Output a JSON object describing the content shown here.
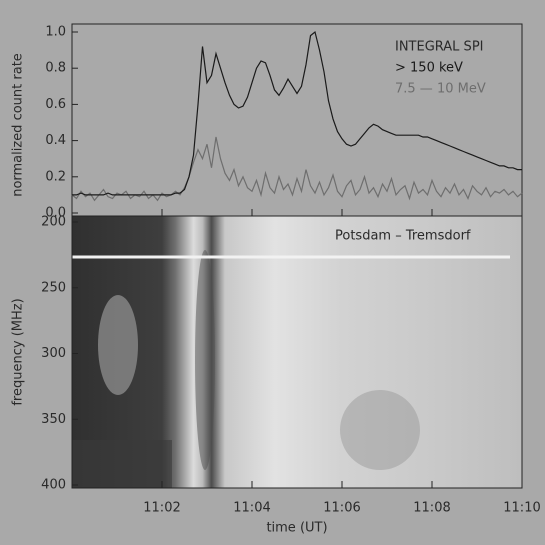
{
  "chart_data": [
    {
      "type": "line",
      "ylabel": "normalized count rate",
      "legend_title": "INTEGRAL SPI",
      "legend": "top-right",
      "xlim": [
        660,
        670
      ],
      "ylim": [
        0,
        1
      ],
      "yticks": [
        {
          "value": 0,
          "label": "0.0"
        },
        0.2,
        0.4,
        0.6,
        0.8,
        {
          "value": 1,
          "label": "1.0"
        }
      ],
      "x": [
        660,
        660.1,
        660.2,
        660.3,
        660.4,
        660.5,
        660.6,
        660.7,
        660.8,
        660.9,
        661,
        661.1,
        661.2,
        661.3,
        661.4,
        661.5,
        661.6,
        661.7,
        661.8,
        661.9,
        662,
        662.1,
        662.2,
        662.3,
        662.4,
        662.5,
        662.6,
        662.7,
        662.8,
        662.9,
        663,
        663.1,
        663.2,
        663.3,
        663.4,
        663.5,
        663.6,
        663.7,
        663.8,
        663.9,
        664,
        664.1,
        664.2,
        664.3,
        664.4,
        664.5,
        664.6,
        664.7,
        664.8,
        664.9,
        665,
        665.1,
        665.2,
        665.3,
        665.4,
        665.5,
        665.6,
        665.7,
        665.8,
        665.9,
        666,
        666.1,
        666.2,
        666.3,
        666.4,
        666.5,
        666.6,
        666.7,
        666.8,
        666.9,
        667,
        667.1,
        667.2,
        667.3,
        667.4,
        667.5,
        667.6,
        667.7,
        667.8,
        667.9,
        668,
        668.1,
        668.2,
        668.3,
        668.4,
        668.5,
        668.6,
        668.7,
        668.8,
        668.9,
        669,
        669.1,
        669.2,
        669.3,
        669.4,
        669.5,
        669.6,
        669.7,
        669.8,
        669.9,
        670
      ],
      "series": [
        {
          "name": "> 150 keV",
          "color": "#1a1a1a",
          "values": [
            0.1,
            0.1,
            0.11,
            0.1,
            0.1,
            0.1,
            0.1,
            0.1,
            0.11,
            0.1,
            0.1,
            0.1,
            0.1,
            0.1,
            0.1,
            0.1,
            0.1,
            0.1,
            0.1,
            0.1,
            0.1,
            0.1,
            0.1,
            0.11,
            0.11,
            0.13,
            0.2,
            0.32,
            0.6,
            0.92,
            0.72,
            0.76,
            0.88,
            0.8,
            0.72,
            0.65,
            0.6,
            0.58,
            0.59,
            0.64,
            0.72,
            0.8,
            0.84,
            0.83,
            0.76,
            0.68,
            0.65,
            0.69,
            0.74,
            0.7,
            0.66,
            0.7,
            0.82,
            0.98,
            1.0,
            0.9,
            0.78,
            0.62,
            0.52,
            0.45,
            0.41,
            0.38,
            0.37,
            0.38,
            0.41,
            0.44,
            0.47,
            0.49,
            0.48,
            0.46,
            0.45,
            0.44,
            0.43,
            0.43,
            0.43,
            0.43,
            0.43,
            0.43,
            0.42,
            0.42,
            0.41,
            0.4,
            0.39,
            0.38,
            0.37,
            0.36,
            0.35,
            0.34,
            0.33,
            0.32,
            0.31,
            0.3,
            0.29,
            0.28,
            0.27,
            0.26,
            0.26,
            0.25,
            0.25,
            0.24,
            0.24
          ]
        },
        {
          "name": "7.5 — 10 MeV",
          "color": "#6e6e6e",
          "values": [
            0.1,
            0.08,
            0.12,
            0.09,
            0.11,
            0.07,
            0.1,
            0.13,
            0.09,
            0.08,
            0.11,
            0.1,
            0.12,
            0.08,
            0.1,
            0.09,
            0.12,
            0.08,
            0.1,
            0.07,
            0.11,
            0.09,
            0.1,
            0.12,
            0.1,
            0.14,
            0.2,
            0.28,
            0.35,
            0.3,
            0.38,
            0.25,
            0.42,
            0.3,
            0.22,
            0.18,
            0.24,
            0.15,
            0.2,
            0.14,
            0.12,
            0.18,
            0.1,
            0.22,
            0.14,
            0.11,
            0.2,
            0.13,
            0.16,
            0.1,
            0.19,
            0.12,
            0.24,
            0.15,
            0.11,
            0.17,
            0.1,
            0.14,
            0.21,
            0.12,
            0.09,
            0.15,
            0.18,
            0.1,
            0.13,
            0.2,
            0.11,
            0.14,
            0.09,
            0.16,
            0.12,
            0.19,
            0.1,
            0.13,
            0.15,
            0.08,
            0.17,
            0.11,
            0.13,
            0.1,
            0.18,
            0.12,
            0.09,
            0.14,
            0.11,
            0.16,
            0.1,
            0.13,
            0.08,
            0.15,
            0.12,
            0.1,
            0.14,
            0.09,
            0.12,
            0.11,
            0.13,
            0.1,
            0.12,
            0.09,
            0.11
          ]
        }
      ]
    },
    {
      "type": "spectrogram",
      "ylabel": "frequency (MHz)",
      "xlabel": "time (UT)",
      "annotation": "Potsdam – Tremsdorf",
      "xlim": [
        660,
        670
      ],
      "xticks": [
        {
          "value": 662,
          "label": "11:02"
        },
        {
          "value": 664,
          "label": "11:04"
        },
        {
          "value": 666,
          "label": "11:06"
        },
        {
          "value": 668,
          "label": "11:08"
        },
        {
          "value": 670,
          "label": "11:10"
        }
      ],
      "ylim": [
        200,
        400
      ],
      "yticks": [
        200,
        250,
        300,
        350,
        400
      ]
    }
  ]
}
